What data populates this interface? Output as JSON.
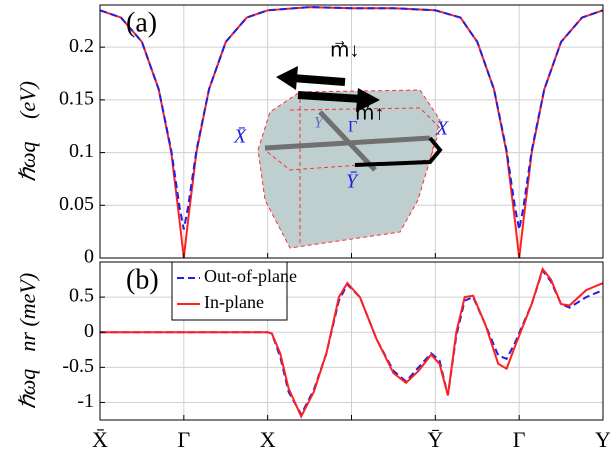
{
  "chart_data": [
    {
      "type": "line",
      "panel_label": "(a)",
      "ylabel": "ℏωq⃗ (eV)",
      "x": [
        0,
        0.25,
        0.5,
        0.7,
        0.85,
        0.95,
        1,
        1.05,
        1.15,
        1.3,
        1.5,
        1.75,
        2,
        2.5,
        3,
        3.5,
        4,
        4.3,
        4.5,
        4.7,
        4.85,
        4.95,
        5,
        5.05,
        5.15,
        5.3,
        5.5,
        5.75,
        6
      ],
      "series": [
        {
          "color": "#ff2020",
          "linestyle": "solid",
          "values": [
            0.235,
            0.228,
            0.205,
            0.16,
            0.1,
            0.035,
            0,
            0.035,
            0.1,
            0.16,
            0.205,
            0.228,
            0.235,
            0.238,
            0.237,
            0.237,
            0.235,
            0.228,
            0.205,
            0.16,
            0.1,
            0.035,
            0,
            0.035,
            0.1,
            0.16,
            0.205,
            0.228,
            0.235
          ]
        },
        {
          "color": "#2020e0",
          "linestyle": "dashed",
          "values": [
            0.235,
            0.228,
            0.205,
            0.16,
            0.102,
            0.048,
            0.027,
            0.048,
            0.102,
            0.16,
            0.205,
            0.228,
            0.235,
            0.238,
            0.237,
            0.237,
            0.235,
            0.228,
            0.205,
            0.16,
            0.102,
            0.048,
            0.027,
            0.048,
            0.102,
            0.16,
            0.205,
            0.228,
            0.235
          ]
        }
      ],
      "xlim": [
        0,
        6
      ],
      "xticks": [
        0,
        1,
        2,
        3,
        4,
        5,
        6
      ],
      "ylim": [
        0,
        0.24
      ],
      "yticks": [
        0,
        0.05,
        0.1,
        0.15,
        0.2
      ],
      "grid": true,
      "annotations": [
        "m⃗↓",
        "m⃗↑",
        "X̄",
        "X",
        "Ȳ",
        "Y",
        "Γ"
      ]
    },
    {
      "type": "line",
      "panel_label": "(b)",
      "ylabel": "ℏωq⃗nr (meV)",
      "x": [
        0,
        1,
        2,
        2.05,
        2.15,
        2.25,
        2.4,
        2.55,
        2.7,
        2.85,
        2.95,
        3.1,
        3.3,
        3.5,
        3.65,
        3.8,
        3.95,
        4.05,
        4.15,
        4.25,
        4.35,
        4.45,
        4.6,
        4.75,
        4.85,
        4.95,
        5.15,
        5.28,
        5.38,
        5.5,
        5.6,
        5.8,
        6
      ],
      "series": [
        {
          "name": "Out-of-plane",
          "color": "#2020e0",
          "linestyle": "dashed",
          "values": [
            0,
            0,
            0,
            -0.02,
            -0.35,
            -0.85,
            -1.17,
            -0.82,
            -0.3,
            0.45,
            0.68,
            0.5,
            -0.1,
            -0.55,
            -0.7,
            -0.5,
            -0.3,
            -0.4,
            -0.9,
            -0.05,
            0.45,
            0.5,
            0.1,
            -0.33,
            -0.38,
            -0.15,
            0.4,
            0.88,
            0.72,
            0.4,
            0.35,
            0.5,
            0.6
          ]
        },
        {
          "name": "In-plane",
          "color": "#ff2020",
          "linestyle": "solid",
          "values": [
            0,
            0,
            0,
            -0.02,
            -0.3,
            -0.8,
            -1.2,
            -0.85,
            -0.3,
            0.5,
            0.7,
            0.5,
            -0.1,
            -0.58,
            -0.72,
            -0.55,
            -0.32,
            -0.45,
            -0.9,
            0,
            0.5,
            0.52,
            0.1,
            -0.45,
            -0.52,
            -0.2,
            0.4,
            0.9,
            0.75,
            0.4,
            0.38,
            0.6,
            0.7
          ]
        }
      ],
      "xlim": [
        0,
        6
      ],
      "xticks": [
        {
          "value": 0,
          "label": "X̄"
        },
        {
          "value": 1,
          "label": "Γ"
        },
        {
          "value": 2,
          "label": "X"
        },
        {
          "value": 3,
          "label": null
        },
        {
          "value": 4,
          "label": "Ȳ"
        },
        {
          "value": 5,
          "label": "Γ"
        },
        {
          "value": 6,
          "label": "Y"
        }
      ],
      "ylim": [
        -1.25,
        1
      ],
      "yticks": [
        -1,
        -0.5,
        0,
        0.5
      ],
      "grid": true,
      "legend": "upper left"
    }
  ]
}
